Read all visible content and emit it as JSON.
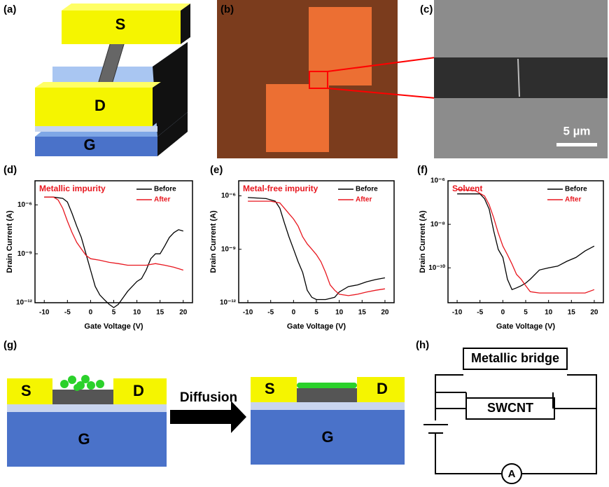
{
  "panels": {
    "labels": [
      "(a)",
      "(b)",
      "(c)",
      "(d)",
      "(e)",
      "(f)",
      "(g)",
      "(h)"
    ],
    "a": {
      "source": "S",
      "drain": "D",
      "gate": "G"
    },
    "c": {
      "scale_bar": "5 µm"
    },
    "g": {
      "source": "S",
      "drain": "D",
      "gate": "G",
      "arrow": "Diffusion"
    },
    "h": {
      "bridge": "Metallic bridge",
      "tube": "SWCNT",
      "meter": "A"
    }
  },
  "chart_data": [
    {
      "type": "line",
      "annotation": "Metallic impurity",
      "xlabel": "Gate Voltage (V)",
      "ylabel": "Drain Current (A)",
      "log_y": true,
      "xlim": [
        -12,
        22
      ],
      "xticks": [
        -10,
        -5,
        0,
        5,
        10,
        15,
        20
      ],
      "ylim": [
        1e-12,
        3e-05
      ],
      "yticks": [
        {
          "value": 1e-06,
          "label": "10⁻⁶"
        },
        {
          "value": 1e-09,
          "label": "10⁻⁹"
        },
        {
          "value": 1e-12,
          "label": "10⁻¹²"
        }
      ],
      "series": [
        {
          "name": "Before",
          "color": "#000000",
          "x": [
            -10,
            -8,
            -6,
            -5,
            -4,
            -3,
            -2,
            -1,
            0,
            1,
            2,
            3,
            4,
            5,
            6,
            7,
            8,
            9,
            10,
            11,
            12,
            13,
            14,
            15,
            16,
            17,
            18,
            19,
            20
          ],
          "values": [
            3e-06,
            3e-06,
            2.5e-06,
            1.5e-06,
            3e-07,
            5e-08,
            1e-08,
            1e-09,
            1e-10,
            1e-11,
            3e-12,
            1.5e-12,
            8e-13,
            5e-13,
            8e-13,
            2e-12,
            5e-12,
            1e-11,
            2e-11,
            3e-11,
            1e-10,
            5e-10,
            1e-09,
            1e-09,
            3e-09,
            1e-08,
            2e-08,
            3e-08,
            2.5e-08
          ]
        },
        {
          "name": "After",
          "color": "#e8171f",
          "x": [
            -10,
            -8,
            -7,
            -6,
            -5,
            -4,
            -3,
            -2,
            -1,
            0,
            2,
            4,
            6,
            8,
            10,
            12,
            14,
            16,
            18,
            20
          ],
          "values": [
            3e-06,
            3e-06,
            2e-06,
            6e-07,
            1e-07,
            2e-08,
            5e-09,
            2e-09,
            8e-10,
            5e-10,
            4e-10,
            3e-10,
            2.5e-10,
            2e-10,
            2e-10,
            2e-10,
            2.5e-10,
            2e-10,
            1.5e-10,
            1e-10
          ]
        }
      ]
    },
    {
      "type": "line",
      "annotation": "Metal-free impurity",
      "xlabel": "Gate Voltage (V)",
      "ylabel": "Drain Current (A)",
      "log_y": true,
      "xlim": [
        -12,
        22
      ],
      "xticks": [
        -10,
        -5,
        0,
        5,
        10,
        15,
        20
      ],
      "ylim": [
        1e-12,
        7e-06
      ],
      "yticks": [
        {
          "value": 1e-06,
          "label": "10⁻⁶"
        },
        {
          "value": 1e-09,
          "label": "10⁻⁹"
        },
        {
          "value": 1e-12,
          "label": "10⁻¹²"
        }
      ],
      "series": [
        {
          "name": "Before",
          "color": "#000000",
          "x": [
            -10,
            -6,
            -4,
            -3,
            -2,
            -1,
            0,
            1,
            2,
            3,
            4,
            5,
            7,
            9,
            10,
            12,
            14,
            16,
            18,
            20
          ],
          "values": [
            8e-07,
            7e-07,
            5e-07,
            2e-07,
            3e-08,
            5e-09,
            1e-09,
            2e-10,
            5e-11,
            5e-12,
            2e-12,
            1.5e-12,
            1.5e-12,
            2e-12,
            4e-12,
            8e-12,
            1e-11,
            1.5e-11,
            2e-11,
            2.5e-11
          ]
        },
        {
          "name": "After",
          "color": "#e8171f",
          "x": [
            -10,
            -5,
            -3,
            -2,
            -1,
            0,
            1,
            2,
            3,
            4,
            5,
            6,
            7,
            8,
            9,
            10,
            12,
            14,
            16,
            18,
            20
          ],
          "values": [
            5e-07,
            5e-07,
            4e-07,
            2e-07,
            1e-07,
            5e-08,
            2e-08,
            5e-09,
            2e-09,
            1e-09,
            5e-10,
            2e-10,
            5e-11,
            1e-11,
            5e-12,
            3e-12,
            2.5e-12,
            3e-12,
            4e-12,
            5e-12,
            6e-12
          ]
        }
      ]
    },
    {
      "type": "line",
      "annotation": "Solvent",
      "xlabel": "Gate Voltage (V)",
      "ylabel": "Drain Current (A)",
      "log_y": true,
      "xlim": [
        -12,
        22
      ],
      "xticks": [
        -10,
        -5,
        0,
        5,
        10,
        15,
        20
      ],
      "ylim": [
        2.5e-12,
        1e-06
      ],
      "yticks": [
        {
          "value": 1e-06,
          "label": "10⁻⁶"
        },
        {
          "value": 1e-08,
          "label": "10⁻⁸"
        },
        {
          "value": 1e-10,
          "label": "10⁻¹⁰"
        }
      ],
      "series": [
        {
          "name": "Before",
          "color": "#000000",
          "x": [
            -10,
            -5,
            -4,
            -3,
            -2,
            -1,
            0,
            1,
            2,
            3,
            4,
            5,
            6,
            8,
            10,
            12,
            14,
            16,
            18,
            20
          ],
          "values": [
            2.5e-07,
            2.5e-07,
            1.5e-07,
            5e-08,
            5e-09,
            7e-10,
            3e-10,
            3e-11,
            1e-11,
            1.2e-11,
            1.5e-11,
            2e-11,
            3e-11,
            8e-11,
            1e-10,
            1.2e-10,
            2e-10,
            3e-10,
            6e-10,
            1e-09
          ]
        },
        {
          "name": "After",
          "color": "#e8171f",
          "x": [
            -10,
            -6,
            -4,
            -3,
            -2,
            -1,
            0,
            1,
            2,
            3,
            4,
            5,
            6,
            8,
            10,
            12,
            14,
            16,
            18,
            20
          ],
          "values": [
            4e-07,
            3.5e-07,
            2e-07,
            8e-08,
            2e-08,
            4e-09,
            1e-09,
            4e-10,
            1.5e-10,
            5e-11,
            3e-11,
            1.5e-11,
            8e-12,
            7e-12,
            7e-12,
            7e-12,
            7e-12,
            7e-12,
            7e-12,
            1e-11
          ]
        }
      ]
    }
  ]
}
